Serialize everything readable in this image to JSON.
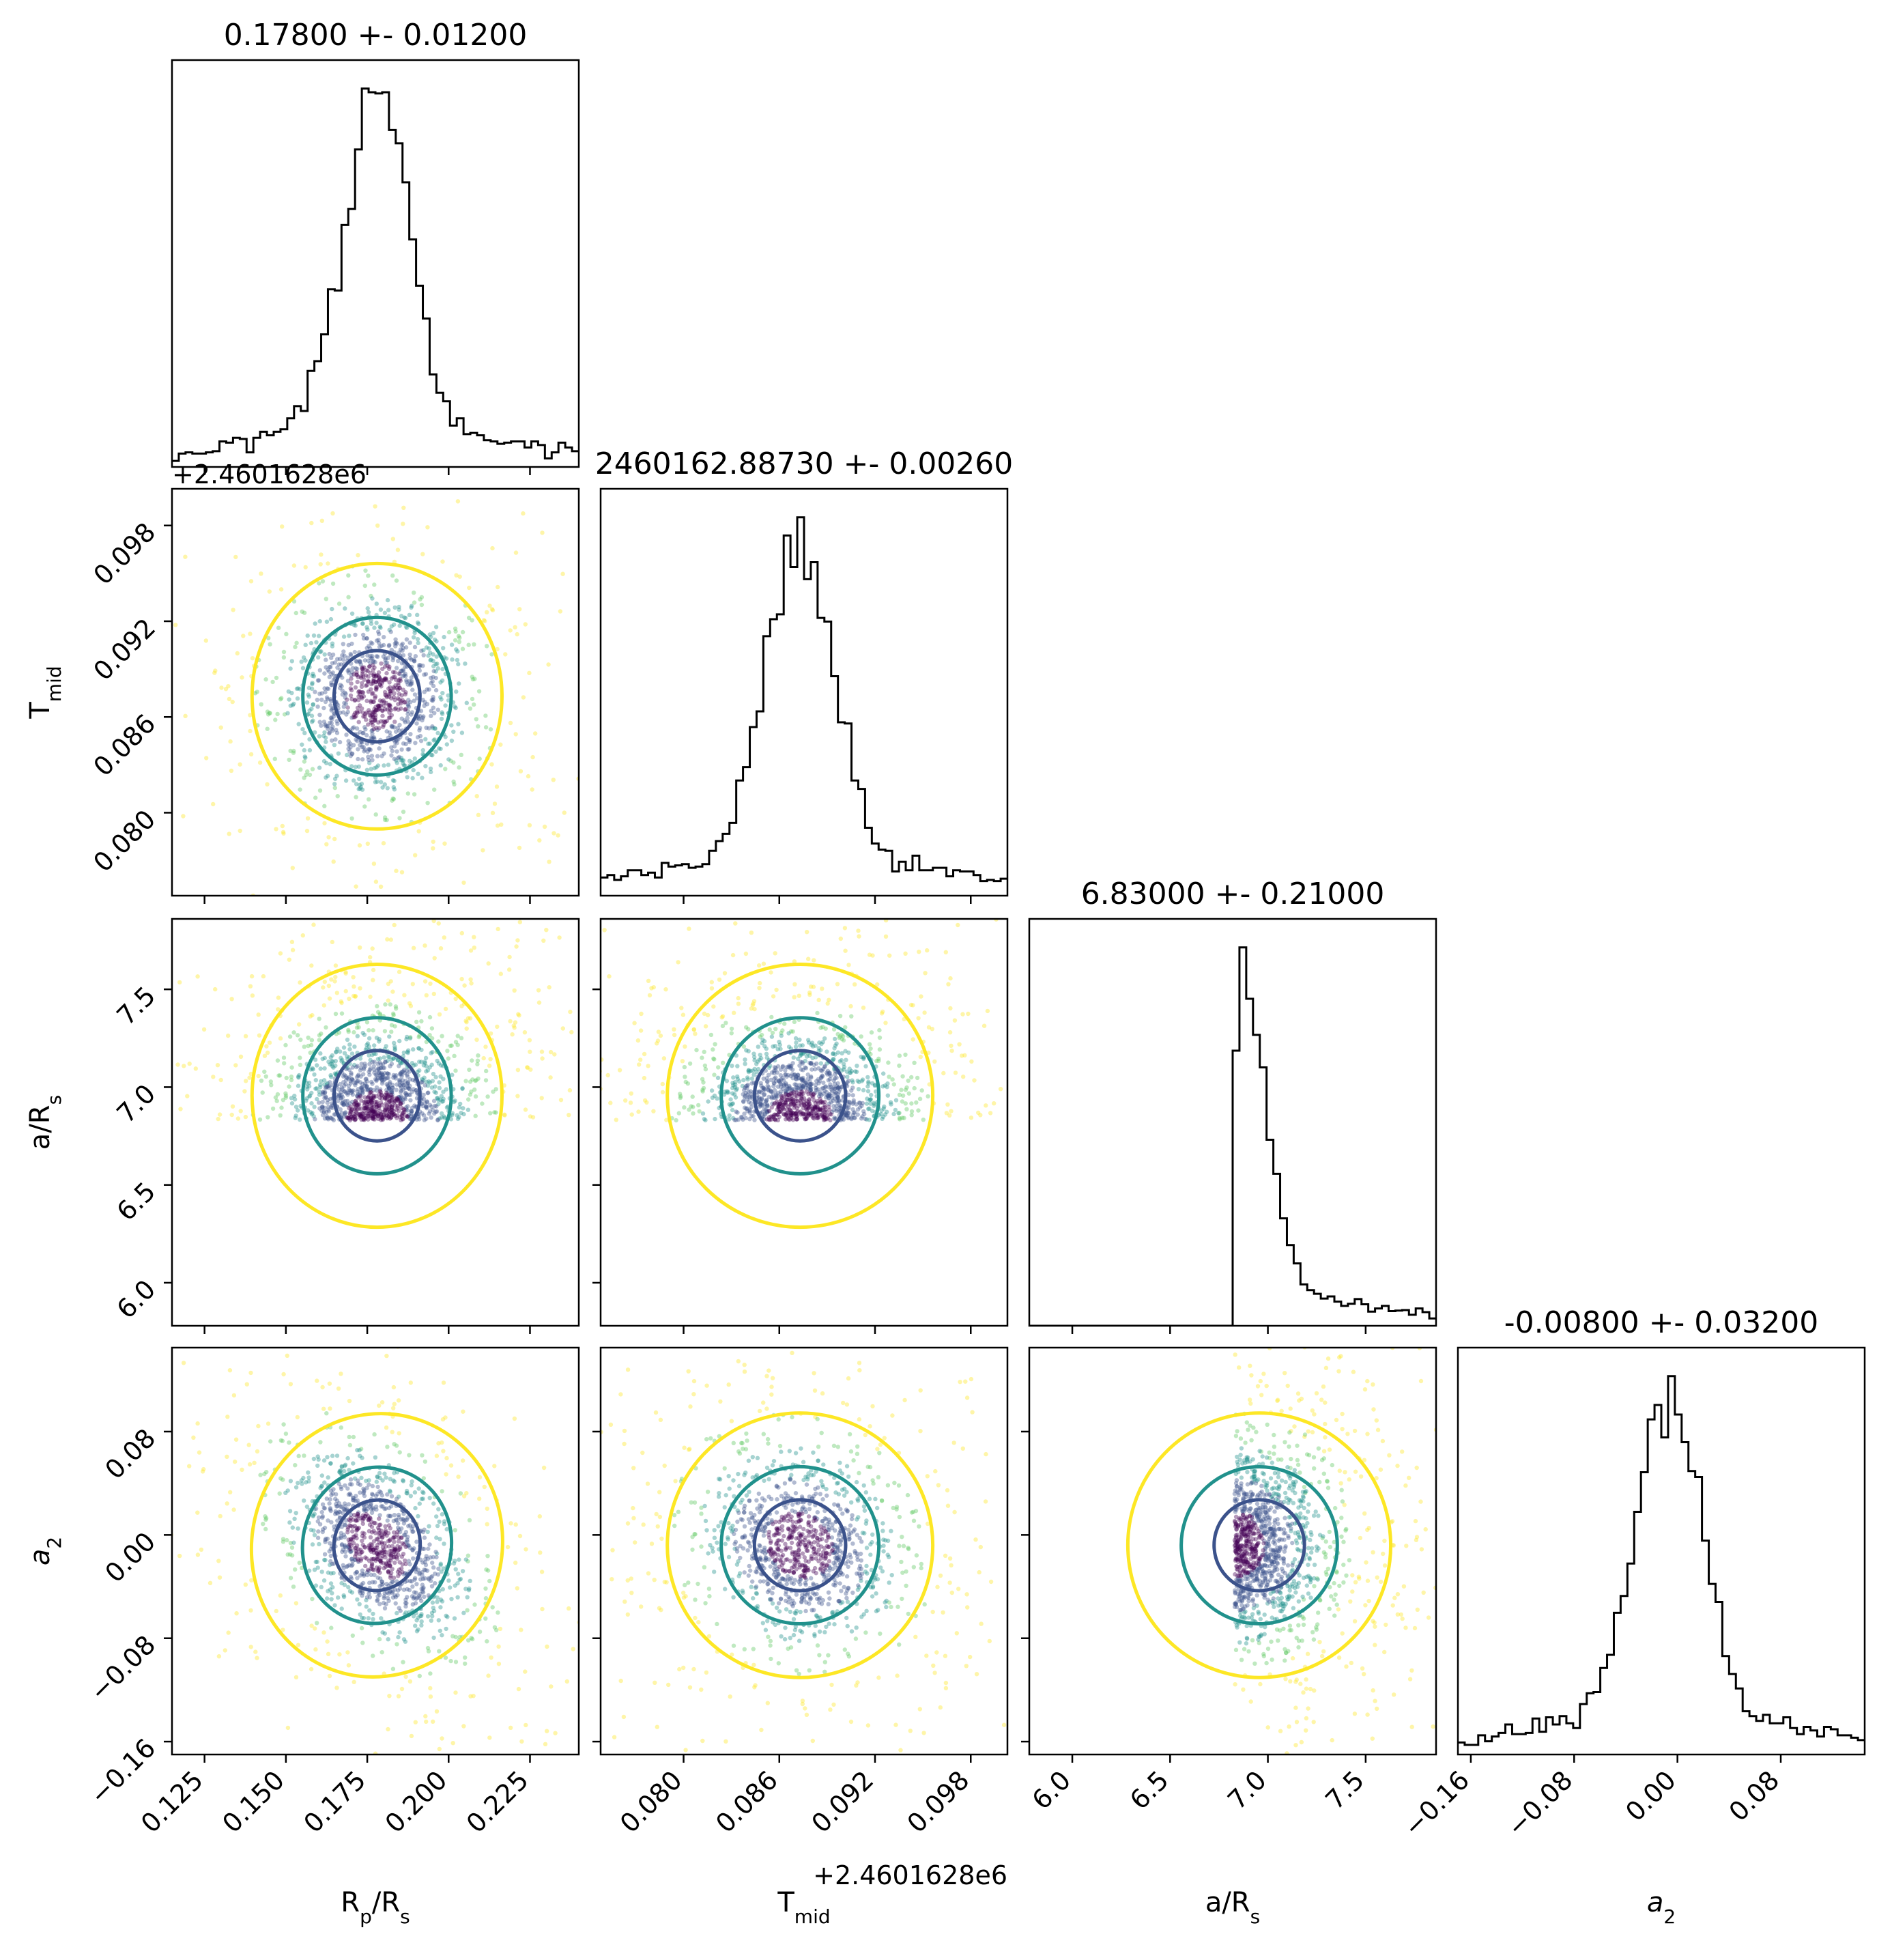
{
  "chart_data": {
    "type": "scatter",
    "subtype": "corner",
    "parameters": [
      {
        "key": "rp",
        "label": "R",
        "sub": "p",
        "label_tail": "/R",
        "tail_sub": "s",
        "range": [
          0.115,
          0.24
        ],
        "ticks": [
          "0.125",
          "0.150",
          "0.175",
          "0.200",
          "0.225"
        ],
        "tick_values": [
          0.125,
          0.15,
          0.175,
          0.2,
          0.225
        ],
        "median": 0.178,
        "sigma": 0.012
      },
      {
        "key": "tmid",
        "label": "T",
        "sub": "mid",
        "label_tail": "",
        "tail_sub": "",
        "range": [
          0.0748,
          0.1003
        ],
        "ticks": [
          "0.080",
          "0.086",
          "0.092",
          "0.098"
        ],
        "tick_values": [
          0.08,
          0.086,
          0.092,
          0.098
        ],
        "offset": "+2.4601628e6",
        "median": 0.0873,
        "sigma": 0.0026
      },
      {
        "key": "ars",
        "label": "a/R",
        "sub": "s",
        "label_tail": "",
        "tail_sub": "",
        "range": [
          5.78,
          7.86
        ],
        "ticks": [
          "6.0",
          "6.5",
          "7.0",
          "7.5"
        ],
        "tick_values": [
          6.0,
          6.5,
          7.0,
          7.5
        ],
        "median": 6.83,
        "sigma": 0.21
      },
      {
        "key": "a2",
        "label": "a",
        "sub": "2",
        "label_tail": "",
        "tail_sub": "",
        "italic": true,
        "range": [
          -0.17,
          0.145
        ],
        "ticks": [
          "−0.16",
          "−0.08",
          "0.00",
          "0.08"
        ],
        "tick_values": [
          -0.16,
          -0.08,
          0.0,
          0.08
        ],
        "median": -0.008,
        "sigma": 0.032
      }
    ],
    "titles": [
      "0.17800 +- 0.01200",
      "2460162.88730 +- 0.00260",
      "6.83000 +- 0.21000",
      "-0.00800 +- 0.03200"
    ],
    "contour_colors": [
      "#3b528b",
      "#21918c",
      "#fde725"
    ],
    "grid": false,
    "legend": "none"
  }
}
